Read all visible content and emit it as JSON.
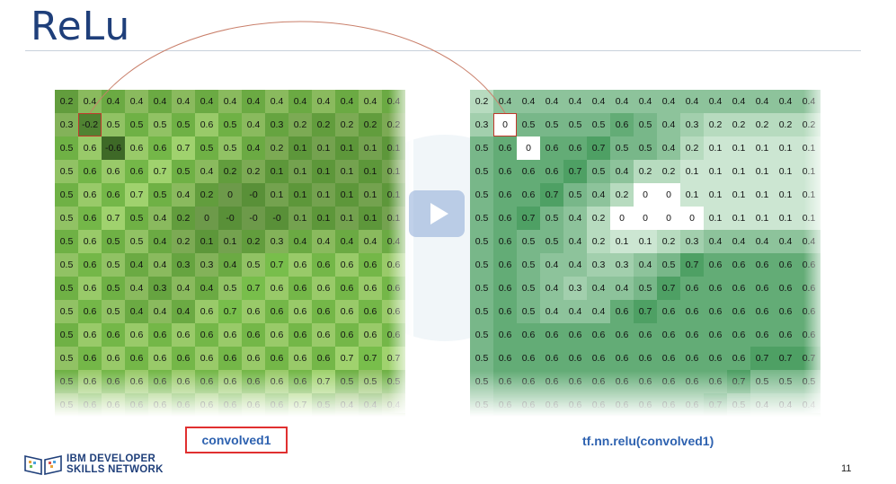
{
  "slide": {
    "title": "ReLu",
    "page_number": "11",
    "logo": {
      "line1": "IBM DEVELOPER",
      "line2": "SKILLS NETWORK"
    }
  },
  "left_panel": {
    "caption": "convolved1",
    "selected_cell": [
      1,
      1
    ],
    "rows": [
      [
        "0.2",
        "0.4",
        "0.4",
        "0.4",
        "0.4",
        "0.4",
        "0.4",
        "0.4",
        "0.4",
        "0.4",
        "0.4",
        "0.4",
        "0.4",
        "0.4",
        "0.4"
      ],
      [
        "0.3",
        "-0.2",
        "0.5",
        "0.5",
        "0.5",
        "0.5",
        "0.6",
        "0.5",
        "0.4",
        "0.3",
        "0.2",
        "0.2",
        "0.2",
        "0.2",
        "0.2"
      ],
      [
        "0.5",
        "0.6",
        "-0.6",
        "0.6",
        "0.6",
        "0.7",
        "0.5",
        "0.5",
        "0.4",
        "0.2",
        "0.1",
        "0.1",
        "0.1",
        "0.1",
        "0.1"
      ],
      [
        "0.5",
        "0.6",
        "0.6",
        "0.6",
        "0.7",
        "0.5",
        "0.4",
        "0.2",
        "0.2",
        "0.1",
        "0.1",
        "0.1",
        "0.1",
        "0.1",
        "0.1"
      ],
      [
        "0.5",
        "0.6",
        "0.6",
        "0.7",
        "0.5",
        "0.4",
        "0.2",
        "0",
        "-0",
        "0.1",
        "0.1",
        "0.1",
        "0.1",
        "0.1",
        "0.1"
      ],
      [
        "0.5",
        "0.6",
        "0.7",
        "0.5",
        "0.4",
        "0.2",
        "0",
        "-0",
        "-0",
        "-0",
        "0.1",
        "0.1",
        "0.1",
        "0.1",
        "0.1"
      ],
      [
        "0.5",
        "0.6",
        "0.5",
        "0.5",
        "0.4",
        "0.2",
        "0.1",
        "0.1",
        "0.2",
        "0.3",
        "0.4",
        "0.4",
        "0.4",
        "0.4",
        "0.4"
      ],
      [
        "0.5",
        "0.6",
        "0.5",
        "0.4",
        "0.4",
        "0.3",
        "0.3",
        "0.4",
        "0.5",
        "0.7",
        "0.6",
        "0.6",
        "0.6",
        "0.6",
        "0.6"
      ],
      [
        "0.5",
        "0.6",
        "0.5",
        "0.4",
        "0.3",
        "0.4",
        "0.4",
        "0.5",
        "0.7",
        "0.6",
        "0.6",
        "0.6",
        "0.6",
        "0.6",
        "0.6"
      ],
      [
        "0.5",
        "0.6",
        "0.5",
        "0.4",
        "0.4",
        "0.4",
        "0.6",
        "0.7",
        "0.6",
        "0.6",
        "0.6",
        "0.6",
        "0.6",
        "0.6",
        "0.6"
      ],
      [
        "0.5",
        "0.6",
        "0.6",
        "0.6",
        "0.6",
        "0.6",
        "0.6",
        "0.6",
        "0.6",
        "0.6",
        "0.6",
        "0.6",
        "0.6",
        "0.6",
        "0.6"
      ],
      [
        "0.5",
        "0.6",
        "0.6",
        "0.6",
        "0.6",
        "0.6",
        "0.6",
        "0.6",
        "0.6",
        "0.6",
        "0.6",
        "0.6",
        "0.7",
        "0.7",
        "0.7"
      ],
      [
        "0.5",
        "0.6",
        "0.6",
        "0.6",
        "0.6",
        "0.6",
        "0.6",
        "0.6",
        "0.6",
        "0.6",
        "0.6",
        "0.7",
        "0.5",
        "0.5",
        "0.5"
      ],
      [
        "0.5",
        "0.6",
        "0.6",
        "0.6",
        "0.6",
        "0.6",
        "0.6",
        "0.6",
        "0.6",
        "0.6",
        "0.7",
        "0.5",
        "0.4",
        "0.4",
        "0.4"
      ]
    ]
  },
  "right_panel": {
    "caption": "tf.nn.relu(convolved1)",
    "selected_cell": [
      1,
      1
    ],
    "rows": [
      [
        "0.2",
        "0.4",
        "0.4",
        "0.4",
        "0.4",
        "0.4",
        "0.4",
        "0.4",
        "0.4",
        "0.4",
        "0.4",
        "0.4",
        "0.4",
        "0.4",
        "0.4"
      ],
      [
        "0.3",
        "0",
        "0.5",
        "0.5",
        "0.5",
        "0.5",
        "0.6",
        "0.5",
        "0.4",
        "0.3",
        "0.2",
        "0.2",
        "0.2",
        "0.2",
        "0.2"
      ],
      [
        "0.5",
        "0.6",
        "0",
        "0.6",
        "0.6",
        "0.7",
        "0.5",
        "0.5",
        "0.4",
        "0.2",
        "0.1",
        "0.1",
        "0.1",
        "0.1",
        "0.1"
      ],
      [
        "0.5",
        "0.6",
        "0.6",
        "0.6",
        "0.7",
        "0.5",
        "0.4",
        "0.2",
        "0.2",
        "0.1",
        "0.1",
        "0.1",
        "0.1",
        "0.1",
        "0.1"
      ],
      [
        "0.5",
        "0.6",
        "0.6",
        "0.7",
        "0.5",
        "0.4",
        "0.2",
        "0",
        "0",
        "0.1",
        "0.1",
        "0.1",
        "0.1",
        "0.1",
        "0.1"
      ],
      [
        "0.5",
        "0.6",
        "0.7",
        "0.5",
        "0.4",
        "0.2",
        "0",
        "0",
        "0",
        "0",
        "0.1",
        "0.1",
        "0.1",
        "0.1",
        "0.1"
      ],
      [
        "0.5",
        "0.6",
        "0.5",
        "0.5",
        "0.4",
        "0.2",
        "0.1",
        "0.1",
        "0.2",
        "0.3",
        "0.4",
        "0.4",
        "0.4",
        "0.4",
        "0.4"
      ],
      [
        "0.5",
        "0.6",
        "0.5",
        "0.4",
        "0.4",
        "0.3",
        "0.3",
        "0.4",
        "0.5",
        "0.7",
        "0.6",
        "0.6",
        "0.6",
        "0.6",
        "0.6"
      ],
      [
        "0.5",
        "0.6",
        "0.5",
        "0.4",
        "0.3",
        "0.4",
        "0.4",
        "0.5",
        "0.7",
        "0.6",
        "0.6",
        "0.6",
        "0.6",
        "0.6",
        "0.6"
      ],
      [
        "0.5",
        "0.6",
        "0.5",
        "0.4",
        "0.4",
        "0.4",
        "0.6",
        "0.7",
        "0.6",
        "0.6",
        "0.6",
        "0.6",
        "0.6",
        "0.6",
        "0.6"
      ],
      [
        "0.5",
        "0.6",
        "0.6",
        "0.6",
        "0.6",
        "0.6",
        "0.6",
        "0.6",
        "0.6",
        "0.6",
        "0.6",
        "0.6",
        "0.6",
        "0.6",
        "0.6"
      ],
      [
        "0.5",
        "0.6",
        "0.6",
        "0.6",
        "0.6",
        "0.6",
        "0.6",
        "0.6",
        "0.6",
        "0.6",
        "0.6",
        "0.6",
        "0.7",
        "0.7",
        "0.7"
      ],
      [
        "0.5",
        "0.6",
        "0.6",
        "0.6",
        "0.6",
        "0.6",
        "0.6",
        "0.6",
        "0.6",
        "0.6",
        "0.6",
        "0.7",
        "0.5",
        "0.5",
        "0.5"
      ],
      [
        "0.5",
        "0.6",
        "0.6",
        "0.6",
        "0.6",
        "0.6",
        "0.6",
        "0.6",
        "0.6",
        "0.6",
        "0.7",
        "0.5",
        "0.4",
        "0.4",
        "0.4"
      ]
    ]
  },
  "colors": {
    "title": "#1f3f7a",
    "caption": "#2e62b0",
    "caption_border": "#e03030",
    "selection": "#c0392b",
    "arc": "#c97f6a"
  }
}
